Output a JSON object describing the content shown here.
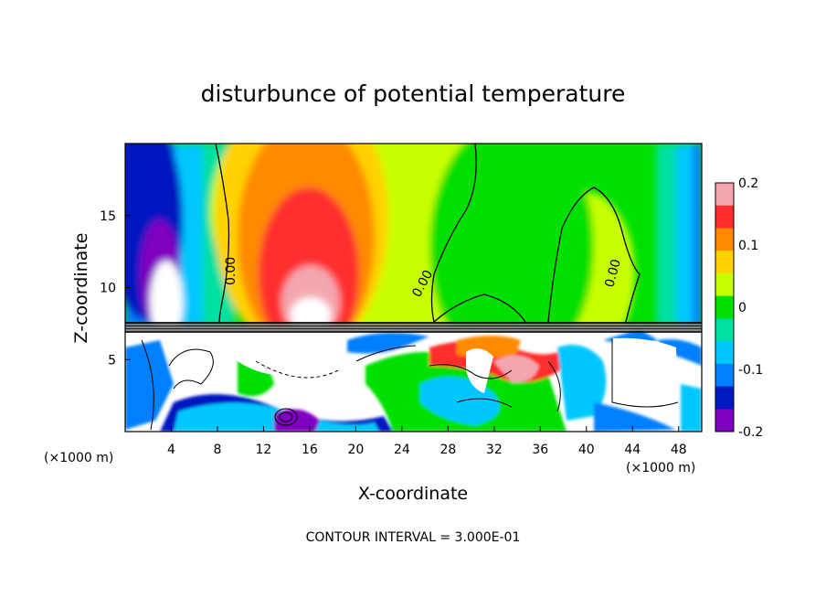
{
  "chart_data": {
    "type": "heatmap",
    "title": "disturbunce of potential temperature",
    "xlabel": "X-coordinate",
    "ylabel": "Z-coordinate",
    "x_unit": "(×1000 m)",
    "y_unit": "(×1000 m)",
    "xlim": [
      0,
      50
    ],
    "ylim": [
      0,
      20
    ],
    "x_ticks": [
      "4",
      "8",
      "12",
      "16",
      "20",
      "24",
      "28",
      "32",
      "36",
      "40",
      "44",
      "48"
    ],
    "y_ticks": [
      "5",
      "10",
      "15"
    ],
    "colorbar": {
      "range": [
        -0.2,
        0.2
      ],
      "tick_labels": [
        "0.2",
        "0.1",
        "0",
        "-0.1",
        "-0.2"
      ],
      "colors": [
        "#f4a6b0",
        "#ff2d2d",
        "#ff8a00",
        "#ffd200",
        "#c8ff00",
        "#00e000",
        "#00e0a0",
        "#00c8ff",
        "#0080ff",
        "#0018c0",
        "#8000c0"
      ]
    },
    "contour_labels": [
      "0.00",
      "0.00",
      "0.00"
    ],
    "footnote": "CONTOUR INTERVAL = 3.000E-01",
    "notes": "Upper layer (z > 7.5 km): warm anomaly centred near x=16, cold anomaly near x=4; lower layer: strongly perturbed field."
  }
}
